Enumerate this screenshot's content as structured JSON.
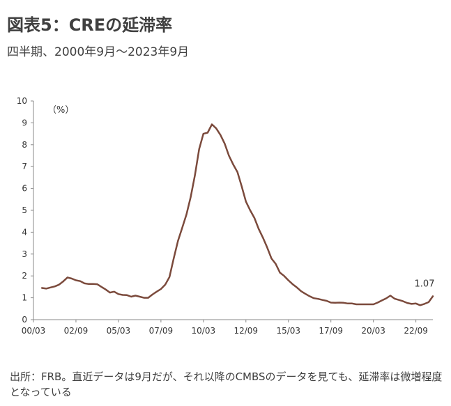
{
  "title": "図表5：CREの延滞率",
  "subtitle": "四半期、2000年9月～2023年9月",
  "source_note": "出所：FRB。直近データは9月だが、それ以降のCMBSのデータを見ても、延滞率は微増程度となっている",
  "chart_data": {
    "type": "line",
    "title": "図表5：CREの延滞率",
    "unit_label": "（%）",
    "xlabel": "",
    "ylabel": "",
    "ylim": [
      0,
      10
    ],
    "y_ticks": [
      "0",
      "1",
      "2",
      "3",
      "4",
      "5",
      "6",
      "7",
      "8",
      "9",
      "10"
    ],
    "x_tick_labels": [
      "00/03",
      "02/09",
      "05/03",
      "07/09",
      "10/03",
      "12/09",
      "15/03",
      "17/09",
      "20/03",
      "22/09"
    ],
    "x_range": [
      "2000-03",
      "2023-09"
    ],
    "grid": false,
    "line_color": "#7b4a3c",
    "annotation": {
      "x": "2023-09",
      "label": "1.07"
    },
    "x": [
      "2000-09",
      "2000-12",
      "2001-03",
      "2001-06",
      "2001-09",
      "2001-12",
      "2002-03",
      "2002-06",
      "2002-09",
      "2002-12",
      "2003-03",
      "2003-06",
      "2003-09",
      "2003-12",
      "2004-03",
      "2004-06",
      "2004-09",
      "2004-12",
      "2005-03",
      "2005-06",
      "2005-09",
      "2005-12",
      "2006-03",
      "2006-06",
      "2006-09",
      "2006-12",
      "2007-03",
      "2007-06",
      "2007-09",
      "2007-12",
      "2008-03",
      "2008-06",
      "2008-09",
      "2008-12",
      "2009-03",
      "2009-06",
      "2009-09",
      "2009-12",
      "2010-03",
      "2010-06",
      "2010-09",
      "2010-12",
      "2011-03",
      "2011-06",
      "2011-09",
      "2011-12",
      "2012-03",
      "2012-06",
      "2012-09",
      "2012-12",
      "2013-03",
      "2013-06",
      "2013-09",
      "2013-12",
      "2014-03",
      "2014-06",
      "2014-09",
      "2014-12",
      "2015-03",
      "2015-06",
      "2015-09",
      "2015-12",
      "2016-03",
      "2016-06",
      "2016-09",
      "2016-12",
      "2017-03",
      "2017-06",
      "2017-09",
      "2017-12",
      "2018-03",
      "2018-06",
      "2018-09",
      "2018-12",
      "2019-03",
      "2019-06",
      "2019-09",
      "2019-12",
      "2020-03",
      "2020-06",
      "2020-09",
      "2020-12",
      "2021-03",
      "2021-06",
      "2021-09",
      "2021-12",
      "2022-03",
      "2022-06",
      "2022-09",
      "2022-12",
      "2023-03",
      "2023-06",
      "2023-09"
    ],
    "series": [
      {
        "values": [
          1.45,
          1.42,
          1.47,
          1.52,
          1.6,
          1.75,
          1.93,
          1.88,
          1.8,
          1.76,
          1.66,
          1.63,
          1.63,
          1.62,
          1.5,
          1.38,
          1.24,
          1.28,
          1.17,
          1.13,
          1.12,
          1.05,
          1.1,
          1.05,
          1.0,
          1.0,
          1.15,
          1.28,
          1.4,
          1.6,
          1.95,
          2.8,
          3.6,
          4.2,
          4.8,
          5.6,
          6.6,
          7.8,
          8.5,
          8.55,
          8.93,
          8.75,
          8.45,
          8.05,
          7.5,
          7.1,
          6.75,
          6.1,
          5.4,
          5.0,
          4.65,
          4.15,
          3.75,
          3.3,
          2.8,
          2.55,
          2.15,
          2.0,
          1.8,
          1.62,
          1.47,
          1.3,
          1.18,
          1.07,
          0.98,
          0.95,
          0.9,
          0.86,
          0.78,
          0.77,
          0.78,
          0.77,
          0.74,
          0.74,
          0.7,
          0.7,
          0.7,
          0.7,
          0.7,
          0.78,
          0.88,
          0.97,
          1.1,
          0.96,
          0.9,
          0.84,
          0.76,
          0.72,
          0.74,
          0.66,
          0.72,
          0.8,
          1.07
        ]
      }
    ]
  }
}
